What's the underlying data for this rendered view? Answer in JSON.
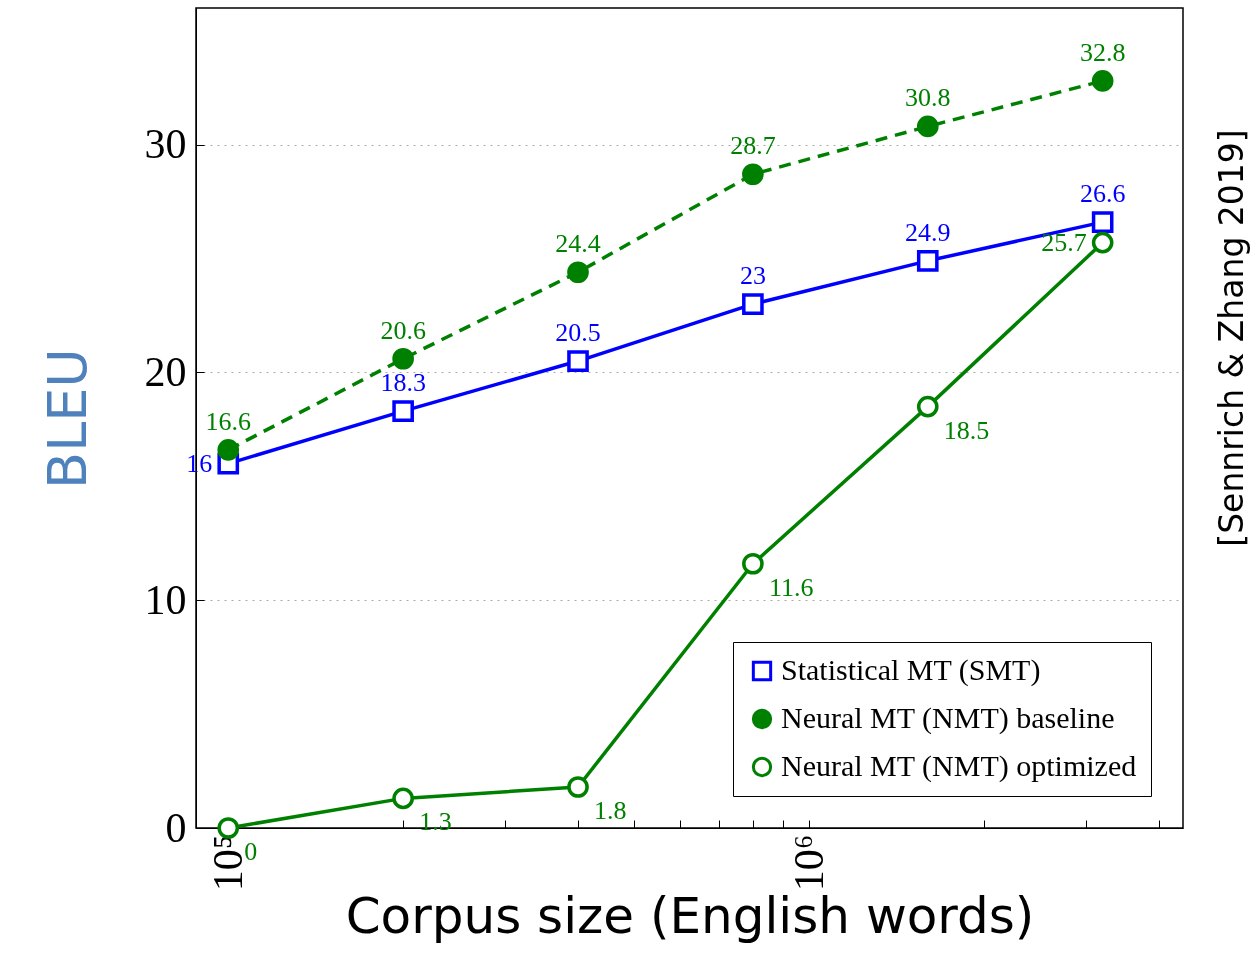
{
  "chart_data": {
    "type": "line",
    "xlabel": "Corpus size (English words)",
    "ylabel": "BLEU",
    "log": "x",
    "x": [
      100000,
      200000,
      400000,
      800000,
      1600000,
      3200000
    ],
    "xlim": [
      88000,
      4400000
    ],
    "xticks": [
      {
        "value": 100000,
        "label": "10⁵"
      },
      {
        "value": 200000,
        "label": null
      },
      {
        "value": 300000,
        "label": null
      },
      {
        "value": 400000,
        "label": null
      },
      {
        "value": 500000,
        "label": null
      },
      {
        "value": 600000,
        "label": null
      },
      {
        "value": 700000,
        "label": null
      },
      {
        "value": 800000,
        "label": null
      },
      {
        "value": 900000,
        "label": null
      },
      {
        "value": 1000000,
        "label": "10⁶"
      },
      {
        "value": 2000000,
        "label": null
      },
      {
        "value": 3000000,
        "label": null
      },
      {
        "value": 4000000,
        "label": null
      }
    ],
    "ylim": [
      0,
      36
    ],
    "yticks": [
      0,
      10,
      20,
      30
    ],
    "grid": "y",
    "legend": "bottom right",
    "data_labels": true,
    "series": [
      {
        "name": "Statistical MT (SMT)",
        "color": "#0000ff",
        "marker": "square",
        "line_style": "solid",
        "values": [
          16,
          18.3,
          20.5,
          23,
          24.9,
          26.6
        ]
      },
      {
        "name": "Neural MT (NMT) baseline",
        "color": "#008000",
        "marker": "circle",
        "line_style": "dashed",
        "values": [
          16.6,
          20.6,
          24.4,
          28.7,
          30.8,
          32.8
        ]
      },
      {
        "name": "Neural MT (NMT) optimized",
        "color": "#008000",
        "marker": "circle",
        "line_style": "solid",
        "values": [
          0,
          1.3,
          1.8,
          11.6,
          18.5,
          25.7
        ]
      }
    ],
    "annotations": [
      "[Sennrich &  Zhang 2019]"
    ]
  }
}
